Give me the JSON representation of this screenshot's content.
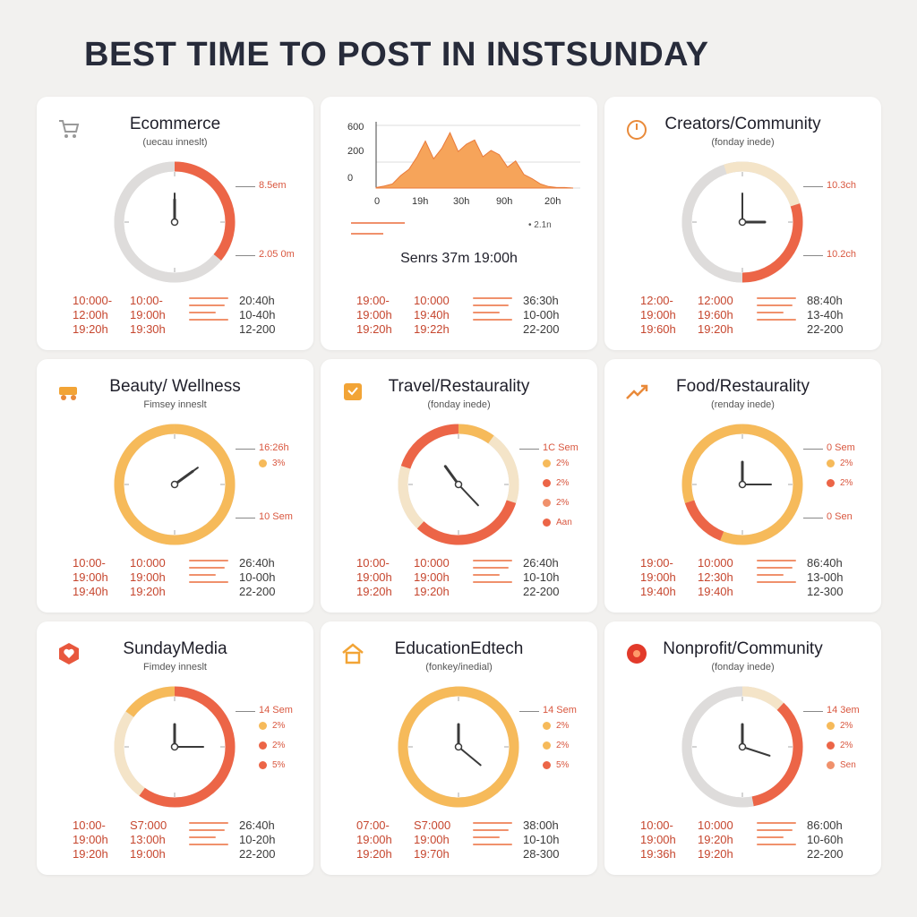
{
  "page": {
    "title": "BEST TIME TO POST IN INSTSUNDAY"
  },
  "colors": {
    "red": "#ec6547",
    "orange": "#f6ba5a",
    "cream": "#f4e4c8",
    "grey": "#dedcdb",
    "peach": "#f0916c"
  },
  "cards": [
    {
      "title": "Ecommerce",
      "subtitle": "(uecau inneslt)",
      "icon": "shopping-cart-icon",
      "dial": {
        "segments": [
          {
            "from": 0,
            "to": 0.36,
            "color": "red"
          },
          {
            "from": 0.36,
            "to": 1,
            "color": "grey"
          }
        ],
        "hour_hand": 0,
        "minute_hand": 0
      },
      "callouts": [
        "8.5em",
        "2.05 0m"
      ],
      "legend": [],
      "table": {
        "col1": [
          "10:000-",
          "12:00h",
          "19:20h"
        ],
        "col2": [
          "10:00-",
          "19:00h",
          "19:30h"
        ],
        "col3": [
          "20:40h",
          "10-40h",
          "12-200"
        ]
      }
    },
    {
      "title": "",
      "subtitle": "",
      "icon": "",
      "chart": true,
      "callouts": [],
      "legend": [],
      "summary": "Senrs 37m 19:00h",
      "mini_legend": "2.1n",
      "table": {
        "col1": [
          "19:00-",
          "19:00h",
          "19:20h"
        ],
        "col2": [
          "10:000",
          "19:40h",
          "19:22h"
        ],
        "col3": [
          "36:30h",
          "10-00h",
          "22-200"
        ]
      }
    },
    {
      "title": "Creators/Community",
      "subtitle": "(fonday inede)",
      "icon": "timer-icon",
      "dial": {
        "segments": [
          {
            "from": 0,
            "to": 0.2,
            "color": "cream"
          },
          {
            "from": 0.2,
            "to": 0.5,
            "color": "red"
          },
          {
            "from": 0.5,
            "to": 1,
            "color": "grey"
          },
          {
            "from": 0.95,
            "to": 1,
            "color": "cream"
          }
        ],
        "hour_hand": 0.25,
        "minute_hand": 0
      },
      "callouts": [
        "10.3ch",
        "10.2ch"
      ],
      "legend": [],
      "table": {
        "col1": [
          "12:00-",
          "19:00h",
          "19:60h"
        ],
        "col2": [
          "12:000",
          "19:60h",
          "19:20h"
        ],
        "col3": [
          "88:40h",
          "13-40h",
          "22-200"
        ]
      }
    },
    {
      "title": "Beauty/ Wellness",
      "subtitle": "Fimsey inneslt",
      "icon": "cart-wagon-icon",
      "dial": {
        "segments": [
          {
            "from": 0,
            "to": 1,
            "color": "orange"
          }
        ],
        "hour_hand": 0.15,
        "minute_hand": 0.15
      },
      "callouts": [
        "16:26h",
        "10 Sem"
      ],
      "legend": [
        {
          "label": "3%",
          "color": "orange"
        }
      ],
      "table": {
        "col1": [
          "10:00-",
          "19:00h",
          "19:40h"
        ],
        "col2": [
          "10:000",
          "19:00h",
          "19:20h"
        ],
        "col3": [
          "26:40h",
          "10-00h",
          "22-200"
        ]
      }
    },
    {
      "title": "Travel/Restaurality",
      "subtitle": "(fonday inede)",
      "icon": "box-icon",
      "dial": {
        "segments": [
          {
            "from": 0,
            "to": 0.1,
            "color": "orange"
          },
          {
            "from": 0.1,
            "to": 0.3,
            "color": "cream"
          },
          {
            "from": 0.3,
            "to": 0.62,
            "color": "red"
          },
          {
            "from": 0.62,
            "to": 0.8,
            "color": "cream"
          },
          {
            "from": 0.8,
            "to": 1,
            "color": "red"
          }
        ],
        "hour_hand": 0.9,
        "minute_hand": 0.38
      },
      "callouts": [
        "1C Sem"
      ],
      "legend": [
        {
          "label": "2%",
          "color": "orange"
        },
        {
          "label": "2%",
          "color": "red"
        },
        {
          "label": "2%",
          "color": "peach"
        },
        {
          "label": "Aan",
          "color": "red"
        }
      ],
      "table": {
        "col1": [
          "10:00-",
          "19:00h",
          "19:20h"
        ],
        "col2": [
          "10:000",
          "19:00h",
          "19:20h"
        ],
        "col3": [
          "26:40h",
          "10-10h",
          "22-200"
        ]
      }
    },
    {
      "title": "Food/Restaurality",
      "subtitle": "(renday inede)",
      "icon": "trend-arrow-icon",
      "dial": {
        "segments": [
          {
            "from": 0,
            "to": 0.56,
            "color": "orange"
          },
          {
            "from": 0.56,
            "to": 0.7,
            "color": "red"
          },
          {
            "from": 0.7,
            "to": 1,
            "color": "orange"
          }
        ],
        "hour_hand": 0,
        "minute_hand": 0.25
      },
      "callouts": [
        "0 Sem",
        "0 Sen"
      ],
      "legend": [
        {
          "label": "2%",
          "color": "orange"
        },
        {
          "label": "2%",
          "color": "red"
        }
      ],
      "table": {
        "col1": [
          "19:00-",
          "19:00h",
          "19:40h"
        ],
        "col2": [
          "10:000",
          "12:30h",
          "19:40h"
        ],
        "col3": [
          "86:40h",
          "13-00h",
          "12-300"
        ]
      }
    },
    {
      "title": "SundayMedia",
      "subtitle": "Fimdey inneslt",
      "icon": "heart-badge-icon",
      "dial": {
        "segments": [
          {
            "from": 0,
            "to": 0.6,
            "color": "red"
          },
          {
            "from": 0.6,
            "to": 0.85,
            "color": "cream"
          },
          {
            "from": 0.85,
            "to": 1,
            "color": "orange"
          }
        ],
        "hour_hand": 0,
        "minute_hand": 0.25
      },
      "callouts": [
        "14 Sem"
      ],
      "legend": [
        {
          "label": "2%",
          "color": "orange"
        },
        {
          "label": "2%",
          "color": "red"
        },
        {
          "label": "5%",
          "color": "red"
        }
      ],
      "table": {
        "col1": [
          "10:00-",
          "19:00h",
          "19:20h"
        ],
        "col2": [
          "S7:000",
          "13:00h",
          "19:00h"
        ],
        "col3": [
          "26:40h",
          "10-20h",
          "22-200"
        ]
      }
    },
    {
      "title": "EducationEdtech",
      "subtitle": "(fonkey/inedial)",
      "icon": "house-icon",
      "dial": {
        "segments": [
          {
            "from": 0,
            "to": 1,
            "color": "orange"
          }
        ],
        "hour_hand": 0,
        "minute_hand": 0.36
      },
      "callouts": [
        "14 Sem"
      ],
      "legend": [
        {
          "label": "2%",
          "color": "orange"
        },
        {
          "label": "2%",
          "color": "orange"
        },
        {
          "label": "5%",
          "color": "red"
        }
      ],
      "table": {
        "col1": [
          "07:00-",
          "19:00h",
          "19:20h"
        ],
        "col2": [
          "S7:000",
          "19:00h",
          "19:70h"
        ],
        "col3": [
          "38:00h",
          "10-10h",
          "28-300"
        ]
      }
    },
    {
      "title": "Nonprofit/Community",
      "subtitle": "(fonday inede)",
      "icon": "flower-icon",
      "dial": {
        "segments": [
          {
            "from": 0,
            "to": 0.12,
            "color": "cream"
          },
          {
            "from": 0.12,
            "to": 0.47,
            "color": "red"
          },
          {
            "from": 0.47,
            "to": 1,
            "color": "grey"
          }
        ],
        "hour_hand": 0,
        "minute_hand": 0.3
      },
      "callouts": [
        "14 3em"
      ],
      "legend": [
        {
          "label": "2%",
          "color": "orange"
        },
        {
          "label": "2%",
          "color": "red"
        },
        {
          "label": "Sen",
          "color": "peach"
        }
      ],
      "table": {
        "col1": [
          "10:00-",
          "19:00h",
          "19:36h"
        ],
        "col2": [
          "10:000",
          "19:20h",
          "19:20h"
        ],
        "col3": [
          "86:00h",
          "10-60h",
          "22-200"
        ]
      }
    }
  ],
  "chart_data": {
    "type": "area",
    "title": "",
    "xlabel": "",
    "ylabel": "",
    "ylim": [
      0,
      600
    ],
    "y_ticks": [
      "600",
      "200",
      "0"
    ],
    "x_ticks": [
      "0",
      "19h",
      "30h",
      "90h",
      "20h"
    ],
    "x": [
      0,
      1,
      2,
      3,
      4,
      5,
      6,
      7,
      8,
      9,
      10,
      11,
      12,
      13,
      14,
      15,
      16,
      17,
      18,
      19,
      20,
      21,
      22,
      23,
      24
    ],
    "values": [
      5,
      20,
      40,
      120,
      180,
      300,
      450,
      280,
      380,
      530,
      350,
      420,
      460,
      300,
      360,
      320,
      200,
      260,
      130,
      90,
      40,
      15,
      5,
      5,
      0
    ]
  }
}
